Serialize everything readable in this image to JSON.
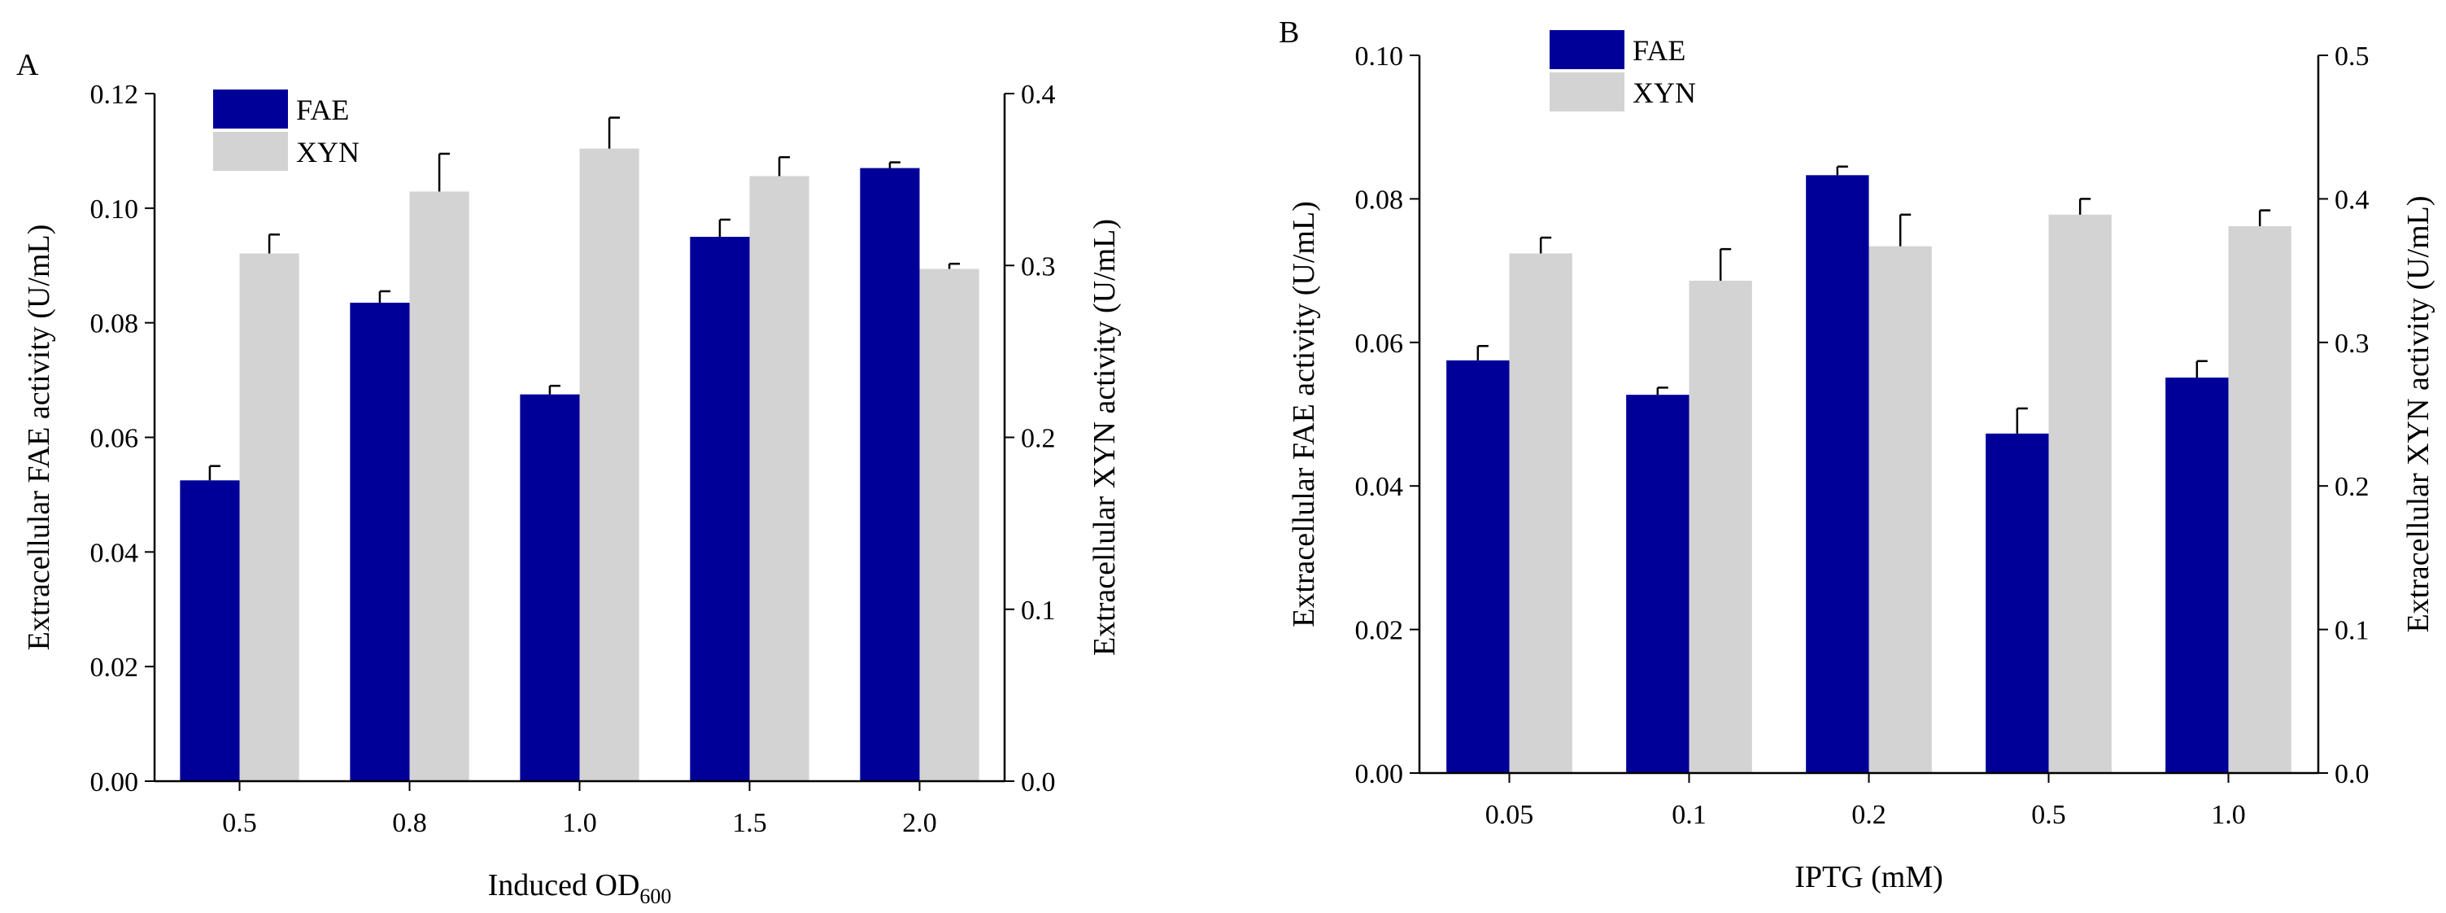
{
  "colors": {
    "fae": "#000099",
    "xyn": "#d3d3d3",
    "axis": "#000000"
  },
  "chart_data": [
    {
      "type": "bar",
      "panel": "A",
      "xlabel": "Induced OD",
      "xlabel_sub": "600",
      "ylabel_left": "Extracellular FAE activity (U/mL)",
      "ylabel_right": "Extracellular XYN activity (U/mL)",
      "ylim_left": [
        0,
        0.12
      ],
      "ylim_right": [
        0,
        0.4
      ],
      "yticks_left": [
        "0.00",
        "0.02",
        "0.04",
        "0.06",
        "0.08",
        "0.10",
        "0.12"
      ],
      "yticks_right": [
        "0.0",
        "0.1",
        "0.2",
        "0.3",
        "0.4"
      ],
      "categories": [
        "0.5",
        "0.8",
        "1.0",
        "1.5",
        "2.0"
      ],
      "series": [
        {
          "name": "FAE",
          "axis": "left",
          "values": [
            0.0525,
            0.0835,
            0.0675,
            0.095,
            0.107
          ],
          "errors": [
            0.0025,
            0.002,
            0.0015,
            0.003,
            0.001
          ]
        },
        {
          "name": "XYN",
          "axis": "right",
          "values": [
            0.307,
            0.343,
            0.368,
            0.352,
            0.298
          ],
          "errors": [
            0.011,
            0.022,
            0.018,
            0.011,
            0.003
          ]
        }
      ],
      "legend": {
        "position": "top-left",
        "entries": [
          "FAE",
          "XYN"
        ]
      }
    },
    {
      "type": "bar",
      "panel": "B",
      "xlabel": "IPTG (mM)",
      "xlabel_sub": "",
      "ylabel_left": "Extracellular FAE activity (U/mL)",
      "ylabel_right": "Extracellular XYN activity (U/mL)",
      "ylim_left": [
        0,
        0.1
      ],
      "ylim_right": [
        0,
        0.5
      ],
      "yticks_left": [
        "0.00",
        "0.02",
        "0.04",
        "0.06",
        "0.08",
        "0.10"
      ],
      "yticks_right": [
        "0.0",
        "0.1",
        "0.2",
        "0.3",
        "0.4",
        "0.5"
      ],
      "categories": [
        "0.05",
        "0.1",
        "0.2",
        "0.5",
        "1.0"
      ],
      "series": [
        {
          "name": "FAE",
          "axis": "left",
          "values": [
            0.0575,
            0.0527,
            0.0833,
            0.0473,
            0.0551
          ],
          "errors": [
            0.002,
            0.001,
            0.0012,
            0.0035,
            0.0023
          ]
        },
        {
          "name": "XYN",
          "axis": "right",
          "values": [
            0.362,
            0.343,
            0.367,
            0.389,
            0.381
          ],
          "errors": [
            0.011,
            0.022,
            0.022,
            0.011,
            0.011
          ]
        }
      ],
      "legend": {
        "position": "top-left",
        "entries": [
          "FAE",
          "XYN"
        ]
      }
    }
  ]
}
